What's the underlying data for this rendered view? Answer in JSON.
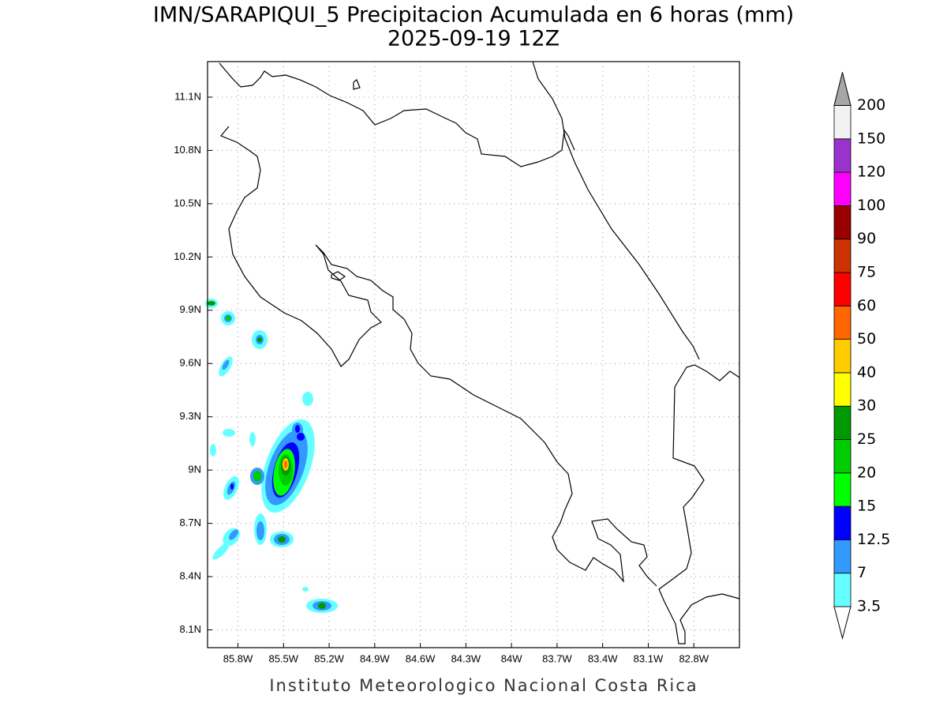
{
  "title": "IMN/SARAPIQUI_5 Precipitacion Acumulada en 6 horas (mm)",
  "subtitle": "2025-09-19 12Z",
  "map": {
    "lonlim": [
      -86.0,
      -82.5
    ],
    "latlim": [
      8.0,
      11.3
    ],
    "lon_ticks": [
      {
        "value": -85.8,
        "label": "85.8W"
      },
      {
        "value": -85.5,
        "label": "85.5W"
      },
      {
        "value": -85.2,
        "label": "85.2W"
      },
      {
        "value": -84.9,
        "label": "84.9W"
      },
      {
        "value": -84.6,
        "label": "84.6W"
      },
      {
        "value": -84.3,
        "label": "84.3W"
      },
      {
        "value": -84.0,
        "label": "84W"
      },
      {
        "value": -83.7,
        "label": "83.7W"
      },
      {
        "value": -83.4,
        "label": "83.4W"
      },
      {
        "value": -83.1,
        "label": "83.1W"
      },
      {
        "value": -82.8,
        "label": "82.8W"
      }
    ],
    "lat_ticks": [
      {
        "value": 11.1,
        "label": "11.1N"
      },
      {
        "value": 10.8,
        "label": "10.8N"
      },
      {
        "value": 10.5,
        "label": "10.5N"
      },
      {
        "value": 10.2,
        "label": "10.2N"
      },
      {
        "value": 9.9,
        "label": "9.9N"
      },
      {
        "value": 9.6,
        "label": "9.6N"
      },
      {
        "value": 9.3,
        "label": "9.3N"
      },
      {
        "value": 9.0,
        "label": "9N"
      },
      {
        "value": 8.7,
        "label": "8.7N"
      },
      {
        "value": 8.4,
        "label": "8.4N"
      },
      {
        "value": 8.1,
        "label": "8.1N"
      }
    ],
    "grid": true
  },
  "colorbar": {
    "levels": [
      3.5,
      7,
      12.5,
      15,
      20,
      25,
      30,
      40,
      50,
      60,
      75,
      90,
      100,
      120,
      150,
      200
    ],
    "under_color": "#ffffff",
    "over_color": "#a6a6a6",
    "colors": [
      "#66ffff",
      "#3399ff",
      "#0000ff",
      "#00ff00",
      "#00cc00",
      "#009900",
      "#ffff00",
      "#ffcc00",
      "#ff6600",
      "#ff0000",
      "#cc3300",
      "#990000",
      "#ff00ff",
      "#9933cc",
      "#f2f2f2"
    ]
  },
  "footer": "Instituto Meteorologico Nacional Costa Rica"
}
